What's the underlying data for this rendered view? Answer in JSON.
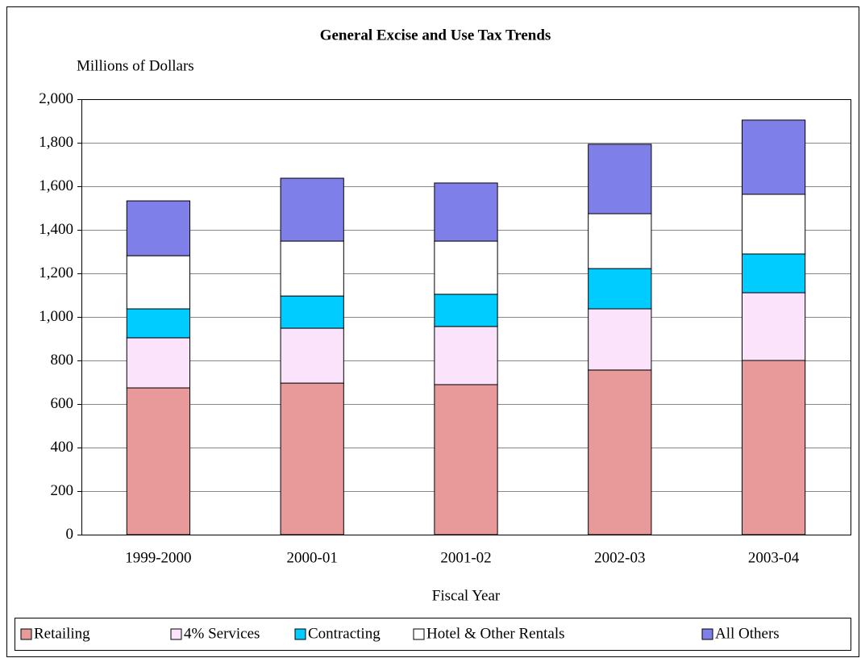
{
  "chart_data": {
    "type": "stacked_bar",
    "title": "General Excise and Use Tax Trends",
    "y_label": "Millions of Dollars",
    "x_label": "Fiscal Year",
    "categories": [
      "1999-2000",
      "2000-01",
      "2001-02",
      "2002-03",
      "2003-04"
    ],
    "series": [
      {
        "name": "Retailing",
        "color": "#e89a9a",
        "values": [
          674,
          696,
          689,
          756,
          800
        ]
      },
      {
        "name": "4% Services",
        "color": "#fbe4fb",
        "values": [
          230,
          252,
          267,
          281,
          311
        ]
      },
      {
        "name": "Contracting",
        "color": "#00ccff",
        "values": [
          133,
          148,
          148,
          185,
          178
        ]
      },
      {
        "name": "Hotel & Other Rentals",
        "color": "#ffffff",
        "values": [
          244,
          252,
          244,
          252,
          274
        ]
      },
      {
        "name": "All Others",
        "color": "#7f7fea",
        "values": [
          252,
          289,
          267,
          319,
          341
        ]
      }
    ],
    "ylim": [
      0,
      2000
    ],
    "yticks": [
      0,
      200,
      400,
      600,
      800,
      {
        "value": 1000,
        "label": "1,000"
      },
      {
        "value": 1200,
        "label": "1,200"
      },
      {
        "value": 1400,
        "label": "1,400"
      },
      {
        "value": 1600,
        "label": "1,600"
      },
      {
        "value": 1800,
        "label": "1,800"
      },
      {
        "value": 2000,
        "label": "2,000"
      }
    ],
    "grid": true,
    "legend": "bottom"
  }
}
